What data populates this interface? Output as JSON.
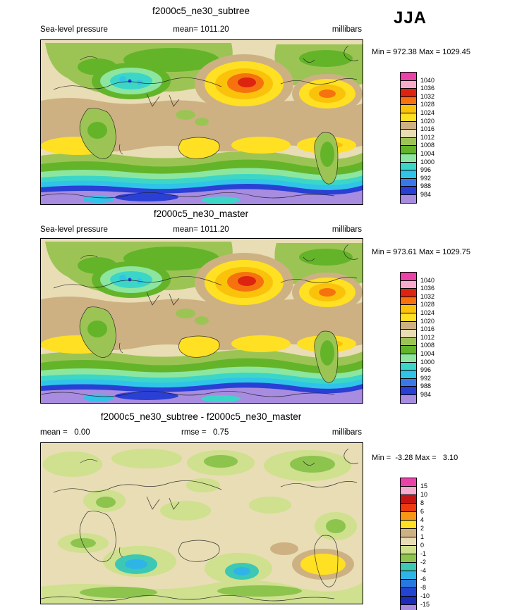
{
  "header": {
    "season": "JJA"
  },
  "panels": [
    {
      "title": "f2000c5_ne30_subtree",
      "var_label": "Sea-level pressure",
      "mean_label": "mean= 1011.20",
      "units": "millibars",
      "minmax": "Min = 972.38 Max = 1029.45",
      "colorbar": {
        "labels": [
          "1040",
          "1036",
          "1032",
          "1028",
          "1024",
          "1020",
          "1016",
          "1012",
          "1008",
          "1004",
          "1000",
          "996",
          "992",
          "988",
          "984"
        ],
        "colors": [
          "#ea43a8",
          "#f7abcd",
          "#dd2410",
          "#f5720e",
          "#fbc20c",
          "#ffe022",
          "#cdb183",
          "#e8ddb4",
          "#9cc455",
          "#64b42a",
          "#8ce6a0",
          "#3cd6c8",
          "#2fc4e8",
          "#3a78e8",
          "#2a3fd4",
          "#a78ce0"
        ]
      }
    },
    {
      "title": "f2000c5_ne30_master",
      "var_label": "Sea-level pressure",
      "mean_label": "mean= 1011.20",
      "units": "millibars",
      "minmax": "Min = 973.61 Max = 1029.75",
      "colorbar": {
        "labels": [
          "1040",
          "1036",
          "1032",
          "1028",
          "1024",
          "1020",
          "1016",
          "1012",
          "1008",
          "1004",
          "1000",
          "996",
          "992",
          "988",
          "984"
        ],
        "colors": [
          "#ea43a8",
          "#f7abcd",
          "#dd2410",
          "#f5720e",
          "#fbc20c",
          "#ffe022",
          "#cdb183",
          "#e8ddb4",
          "#9cc455",
          "#64b42a",
          "#8ce6a0",
          "#3cd6c8",
          "#2fc4e8",
          "#3a78e8",
          "#2a3fd4",
          "#a78ce0"
        ]
      }
    },
    {
      "title": "f2000c5_ne30_subtree - f2000c5_ne30_master",
      "mean_label": "mean =   0.00",
      "rmse_label": "rmse =   0.75",
      "units": "millibars",
      "minmax": "Min =  -3.28 Max =   3.10",
      "colorbar": {
        "labels": [
          "15",
          "10",
          "8",
          "6",
          "4",
          "2",
          "1",
          "0",
          "-1",
          "-2",
          "-4",
          "-6",
          "-8",
          "-10",
          "-15"
        ],
        "colors": [
          "#ea43a8",
          "#f7abcd",
          "#c41414",
          "#ee3a10",
          "#f89618",
          "#ffe022",
          "#cdb183",
          "#e8ddb4",
          "#cfe08e",
          "#8cc44e",
          "#3cc8b4",
          "#2fb4e8",
          "#2878e0",
          "#2244d0",
          "#1a2cb8",
          "#a78ce0"
        ]
      }
    }
  ],
  "chart_data": [
    {
      "type": "heatmap",
      "subtype": "filled-contour world map",
      "title": "f2000c5_ne30_subtree",
      "variable": "Sea-level pressure",
      "season": "JJA",
      "units": "millibars",
      "mean": 1011.2,
      "min": 972.38,
      "max": 1029.45,
      "contour_levels": [
        984,
        988,
        992,
        996,
        1000,
        1004,
        1008,
        1012,
        1016,
        1020,
        1024,
        1028,
        1032,
        1036,
        1040
      ],
      "legend_position": "right"
    },
    {
      "type": "heatmap",
      "subtype": "filled-contour world map",
      "title": "f2000c5_ne30_master",
      "variable": "Sea-level pressure",
      "season": "JJA",
      "units": "millibars",
      "mean": 1011.2,
      "min": 973.61,
      "max": 1029.75,
      "contour_levels": [
        984,
        988,
        992,
        996,
        1000,
        1004,
        1008,
        1012,
        1016,
        1020,
        1024,
        1028,
        1032,
        1036,
        1040
      ],
      "legend_position": "right"
    },
    {
      "type": "heatmap",
      "subtype": "filled-contour world map (difference)",
      "title": "f2000c5_ne30_subtree - f2000c5_ne30_master",
      "variable": "Sea-level pressure difference",
      "season": "JJA",
      "units": "millibars",
      "mean": 0.0,
      "rmse": 0.75,
      "min": -3.28,
      "max": 3.1,
      "contour_levels": [
        -15,
        -10,
        -8,
        -6,
        -4,
        -2,
        -1,
        0,
        1,
        2,
        4,
        6,
        8,
        10,
        15
      ],
      "legend_position": "right"
    }
  ]
}
